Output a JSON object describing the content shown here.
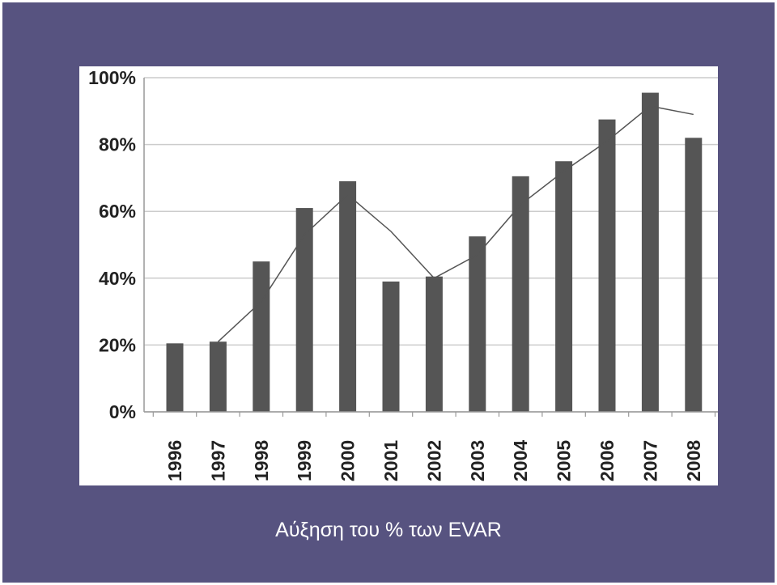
{
  "caption": "Αύξηση του % των EVAR",
  "chart_data": {
    "type": "bar",
    "categories": [
      "1996",
      "1997",
      "1998",
      "1999",
      "2000",
      "2001",
      "2002",
      "2003",
      "2004",
      "2005",
      "2006",
      "2007",
      "2008"
    ],
    "series": [
      {
        "values": [
          20.5,
          21,
          45,
          61,
          69,
          39,
          40.5,
          52.5,
          70.5,
          75,
          87.5,
          95.5,
          82
        ]
      },
      {
        "type": "line",
        "values": [
          null,
          21,
          33,
          53,
          65,
          54,
          40,
          47,
          62,
          72,
          81,
          91.5,
          89
        ]
      }
    ],
    "yticks": [
      "0%",
      "20%",
      "40%",
      "60%",
      "80%",
      "100%"
    ],
    "ylim": [
      0,
      100
    ],
    "grid": true,
    "colors": {
      "bar": "#555555",
      "line": "#555555",
      "grid": "#cccccc",
      "axis": "#999999"
    }
  }
}
